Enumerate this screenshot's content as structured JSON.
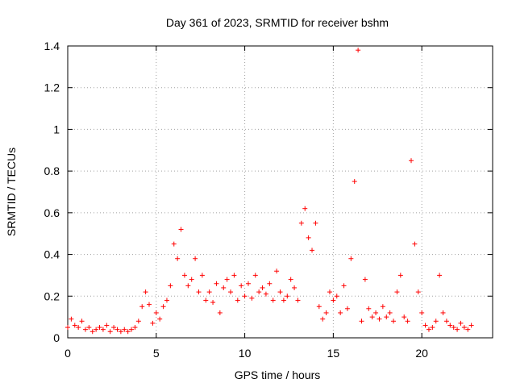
{
  "chart_data": {
    "type": "scatter",
    "title": "Day 361 of 2023, SRMTID for receiver bshm",
    "xlabel": "GPS time / hours",
    "ylabel": "SRMTID / TECUs",
    "xlim": [
      0,
      24
    ],
    "ylim": [
      0,
      1.4
    ],
    "xticks": [
      "0",
      "5",
      "10",
      "15",
      "20"
    ],
    "yticks": [
      "0",
      "0.2",
      "0.4",
      "0.6",
      "0.8",
      "1",
      "1.2",
      "1.4"
    ],
    "grid": true,
    "marker": "+",
    "color": "#ff0000",
    "series": [
      {
        "name": "SRMTID",
        "x": [
          0.0,
          0.2,
          0.4,
          0.6,
          0.8,
          1.0,
          1.2,
          1.4,
          1.6,
          1.8,
          2.0,
          2.2,
          2.4,
          2.6,
          2.8,
          3.0,
          3.2,
          3.4,
          3.6,
          3.8,
          4.0,
          4.2,
          4.4,
          4.6,
          4.8,
          5.0,
          5.2,
          5.4,
          5.6,
          5.8,
          6.0,
          6.2,
          6.4,
          6.6,
          6.8,
          7.0,
          7.2,
          7.4,
          7.6,
          7.8,
          8.0,
          8.2,
          8.4,
          8.6,
          8.8,
          9.0,
          9.2,
          9.4,
          9.6,
          9.8,
          10.0,
          10.2,
          10.4,
          10.6,
          10.8,
          11.0,
          11.2,
          11.4,
          11.6,
          11.8,
          12.0,
          12.2,
          12.4,
          12.6,
          12.8,
          13.0,
          13.2,
          13.4,
          13.6,
          13.8,
          14.0,
          14.2,
          14.4,
          14.6,
          14.8,
          15.0,
          15.2,
          15.4,
          15.6,
          15.8,
          16.0,
          16.2,
          16.4,
          16.6,
          16.8,
          17.0,
          17.2,
          17.4,
          17.6,
          17.8,
          18.0,
          18.2,
          18.4,
          18.6,
          18.8,
          19.0,
          19.2,
          19.4,
          19.6,
          19.8,
          20.0,
          20.2,
          20.4,
          20.6,
          20.8,
          21.0,
          21.2,
          21.4,
          21.6,
          21.8,
          22.0,
          22.2,
          22.4,
          22.6,
          22.8
        ],
        "y": [
          0.05,
          0.09,
          0.06,
          0.05,
          0.08,
          0.04,
          0.05,
          0.03,
          0.04,
          0.05,
          0.04,
          0.06,
          0.03,
          0.05,
          0.04,
          0.03,
          0.04,
          0.03,
          0.04,
          0.05,
          0.08,
          0.15,
          0.22,
          0.16,
          0.07,
          0.12,
          0.09,
          0.15,
          0.18,
          0.25,
          0.45,
          0.38,
          0.52,
          0.3,
          0.25,
          0.28,
          0.38,
          0.22,
          0.3,
          0.18,
          0.22,
          0.17,
          0.26,
          0.12,
          0.24,
          0.28,
          0.22,
          0.3,
          0.18,
          0.25,
          0.2,
          0.26,
          0.19,
          0.3,
          0.22,
          0.24,
          0.21,
          0.26,
          0.18,
          0.32,
          0.22,
          0.18,
          0.2,
          0.28,
          0.24,
          0.18,
          0.55,
          0.62,
          0.48,
          0.42,
          0.55,
          0.15,
          0.09,
          0.12,
          0.22,
          0.18,
          0.2,
          0.12,
          0.25,
          0.14,
          0.38,
          0.75,
          1.38,
          0.08,
          0.28,
          0.14,
          0.1,
          0.12,
          0.09,
          0.15,
          0.1,
          0.12,
          0.08,
          0.22,
          0.3,
          0.1,
          0.08,
          0.85,
          0.45,
          0.22,
          0.12,
          0.06,
          0.04,
          0.05,
          0.08,
          0.3,
          0.12,
          0.08,
          0.06,
          0.05,
          0.04,
          0.07,
          0.05,
          0.04,
          0.06
        ]
      }
    ]
  }
}
